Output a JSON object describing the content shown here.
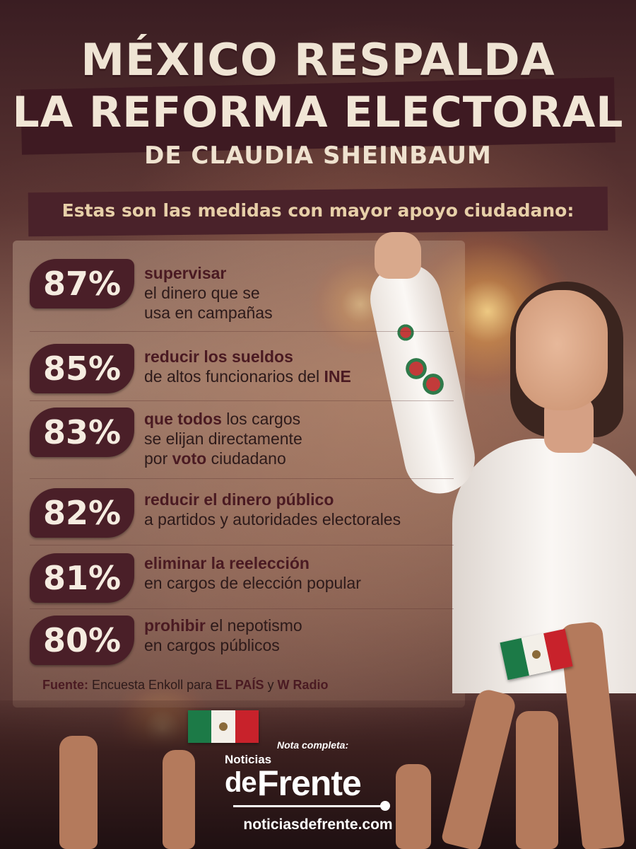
{
  "header": {
    "title_line1": "MÉXICO RESPALDA",
    "title_line2": "LA REFORMA ELECTORAL",
    "title_line3": "DE CLAUDIA SHEINBAUM",
    "subtitle": "Estas son las medidas con mayor apoyo ciudadano:"
  },
  "measures": [
    {
      "percent": "87%",
      "b1": "supervisar",
      "t1": "",
      "b2": "",
      "t2": "",
      "line2": "el dinero que se",
      "line3": "usa en campañas"
    },
    {
      "percent": "85%",
      "b1": "reducir los sueldos",
      "t1": "",
      "b2": "",
      "t2": "",
      "line2_a": "de altos funcionarios del ",
      "line2_b": "INE",
      "line3": ""
    },
    {
      "percent": "83%",
      "b1": "que todos",
      "t1": " los cargos",
      "line2": "se elijan directamente",
      "line3_a": "por ",
      "line3_b": "voto",
      "line3_c": " ciudadano"
    },
    {
      "percent": "82%",
      "b1": "reducir el dinero público",
      "line2": "a partidos y autoridades electorales"
    },
    {
      "percent": "81%",
      "b1": "eliminar la reelección",
      "line2": "en cargos de elección popular"
    },
    {
      "percent": "80%",
      "b1": "prohibir",
      "t1": " el nepotismo",
      "line2": "en cargos públicos"
    }
  ],
  "source": {
    "label": "Fuente:",
    "text_a": " Encuesta Enkoll para ",
    "outlet1": "EL PAÍS",
    "text_b": " y ",
    "outlet2": "W Radio"
  },
  "branding": {
    "nota": "Nota completa:",
    "name_small": "Noticias",
    "name_de": "de",
    "name_frente": "Frente",
    "url": "noticiasdefrente.com"
  },
  "colors": {
    "percent_badge": "#4a1f28",
    "title_band": "#3e1a22",
    "text_dark": "#2d1a1a",
    "flag_green": "#1c7a47",
    "flag_red": "#c8222b"
  }
}
